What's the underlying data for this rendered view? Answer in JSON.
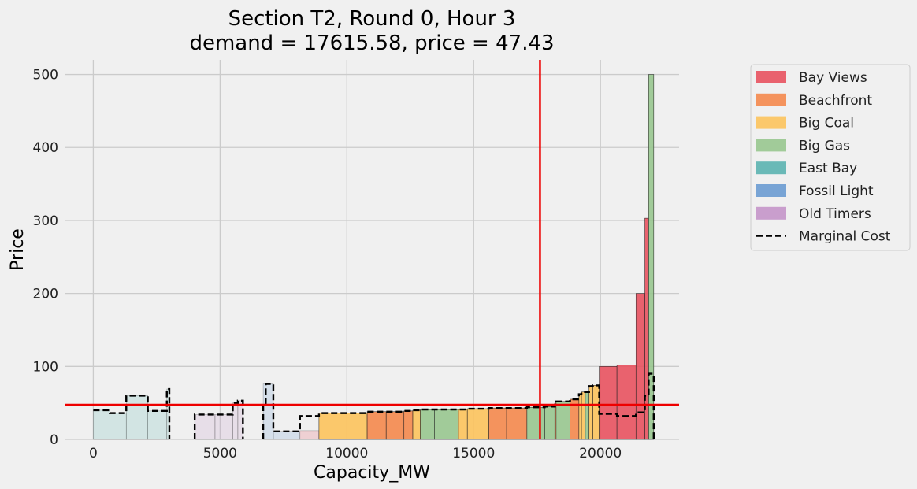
{
  "chart_data": {
    "type": "bar",
    "title_line1": "Section T2, Round 0, Hour 3",
    "title_line2": "demand = 17615.58, price = 47.43",
    "xlabel": "Capacity_MW",
    "ylabel": "Price",
    "xlim": [
      -1100,
      23100
    ],
    "ylim": [
      0,
      520
    ],
    "xticks": [
      0,
      5000,
      10000,
      15000,
      20000
    ],
    "yticks": [
      0,
      100,
      200,
      300,
      400,
      500
    ],
    "grid": true,
    "legend_position": "outside-right",
    "demand": 17615.58,
    "price": 47.43,
    "legend": [
      {
        "label": "Bay Views",
        "color": "#e8525f",
        "kind": "patch"
      },
      {
        "label": "Beachfront",
        "color": "#f4884c",
        "kind": "patch"
      },
      {
        "label": "Big Coal",
        "color": "#fcc35c",
        "kind": "patch"
      },
      {
        "label": "Big Gas",
        "color": "#98c68f",
        "kind": "patch"
      },
      {
        "label": "East Bay",
        "color": "#5bb3b0",
        "kind": "patch"
      },
      {
        "label": "Fossil Light",
        "color": "#6a9bd1",
        "kind": "patch"
      },
      {
        "label": "Old Timers",
        "color": "#c495c9",
        "kind": "patch"
      },
      {
        "label": "Marginal Cost",
        "color": "#000000",
        "kind": "dashed-line"
      }
    ],
    "bars": [
      {
        "x0": 0,
        "x1": 650,
        "y": 40,
        "group": "East Bay"
      },
      {
        "x0": 650,
        "x1": 1300,
        "y": 36,
        "group": "East Bay"
      },
      {
        "x0": 1300,
        "x1": 2150,
        "y": 60,
        "group": "East Bay"
      },
      {
        "x0": 2150,
        "x1": 2900,
        "y": 39,
        "group": "East Bay"
      },
      {
        "x0": 2900,
        "x1": 3000,
        "y": 69,
        "group": "East Bay"
      },
      {
        "x0": 4000,
        "x1": 4800,
        "y": 34,
        "group": "Old Timers"
      },
      {
        "x0": 4800,
        "x1": 5500,
        "y": 34,
        "group": "Old Timers"
      },
      {
        "x0": 5500,
        "x1": 5700,
        "y": 50,
        "group": "Old Timers"
      },
      {
        "x0": 5700,
        "x1": 5900,
        "y": 53,
        "group": "Old Timers"
      },
      {
        "x0": 6700,
        "x1": 7100,
        "y": 76,
        "group": "Fossil Light"
      },
      {
        "x0": 7100,
        "x1": 8150,
        "y": 11,
        "group": "Fossil Light"
      },
      {
        "x0": 8150,
        "x1": 8900,
        "y": 12,
        "group": "Bay Views"
      },
      {
        "x0": 8900,
        "x1": 10800,
        "y": 36,
        "group": "Big Coal"
      },
      {
        "x0": 10800,
        "x1": 11550,
        "y": 38,
        "group": "Beachfront"
      },
      {
        "x0": 11550,
        "x1": 12250,
        "y": 38,
        "group": "Beachfront"
      },
      {
        "x0": 12250,
        "x1": 12600,
        "y": 39,
        "group": "Beachfront"
      },
      {
        "x0": 12600,
        "x1": 12900,
        "y": 40,
        "group": "Big Coal"
      },
      {
        "x0": 12900,
        "x1": 13450,
        "y": 41,
        "group": "Big Gas"
      },
      {
        "x0": 13450,
        "x1": 14400,
        "y": 41,
        "group": "Big Gas"
      },
      {
        "x0": 14400,
        "x1": 14750,
        "y": 41,
        "group": "Big Coal"
      },
      {
        "x0": 14750,
        "x1": 15600,
        "y": 42,
        "group": "Big Coal"
      },
      {
        "x0": 15600,
        "x1": 16300,
        "y": 43,
        "group": "Beachfront"
      },
      {
        "x0": 16300,
        "x1": 17100,
        "y": 43,
        "group": "Beachfront"
      },
      {
        "x0": 17100,
        "x1": 17800,
        "y": 44,
        "group": "Big Gas"
      },
      {
        "x0": 17800,
        "x1": 18200,
        "y": 45,
        "group": "Big Gas"
      },
      {
        "x0": 18200,
        "x1": 18250,
        "y": 50,
        "group": "Beachfront"
      },
      {
        "x0": 18250,
        "x1": 18800,
        "y": 52,
        "group": "Big Gas"
      },
      {
        "x0": 18800,
        "x1": 19150,
        "y": 55,
        "group": "Beachfront"
      },
      {
        "x0": 19150,
        "x1": 19250,
        "y": 62,
        "group": "Big Coal"
      },
      {
        "x0": 19250,
        "x1": 19400,
        "y": 65,
        "group": "Big Coal"
      },
      {
        "x0": 19400,
        "x1": 19550,
        "y": 66,
        "group": "Big Gas"
      },
      {
        "x0": 19550,
        "x1": 19700,
        "y": 73,
        "group": "Big Coal"
      },
      {
        "x0": 19700,
        "x1": 19950,
        "y": 74,
        "group": "Big Coal"
      },
      {
        "x0": 19950,
        "x1": 20650,
        "y": 100,
        "group": "Bay Views"
      },
      {
        "x0": 20650,
        "x1": 21400,
        "y": 102,
        "group": "Bay Views"
      },
      {
        "x0": 21400,
        "x1": 21750,
        "y": 200,
        "group": "Bay Views"
      },
      {
        "x0": 21750,
        "x1": 21900,
        "y": 303,
        "group": "Bay Views"
      },
      {
        "x0": 21900,
        "x1": 22100,
        "y": 500,
        "group": "Big Gas"
      }
    ],
    "marginal_cost": [
      [
        [
          0,
          40
        ],
        [
          650,
          40
        ],
        [
          650,
          36
        ],
        [
          1300,
          36
        ],
        [
          1300,
          60
        ],
        [
          2150,
          60
        ],
        [
          2150,
          39
        ],
        [
          2900,
          39
        ],
        [
          2900,
          69
        ],
        [
          3000,
          69
        ],
        [
          3000,
          0
        ]
      ],
      [
        [
          4000,
          0
        ],
        [
          4000,
          34
        ],
        [
          5500,
          34
        ],
        [
          5500,
          50
        ],
        [
          5700,
          50
        ],
        [
          5700,
          53
        ],
        [
          5900,
          53
        ],
        [
          5900,
          0
        ]
      ],
      [
        [
          6700,
          0
        ],
        [
          6700,
          48
        ],
        [
          6800,
          48
        ],
        [
          6800,
          76
        ],
        [
          7100,
          76
        ],
        [
          7100,
          11
        ],
        [
          8150,
          11
        ],
        [
          8150,
          32
        ],
        [
          8900,
          32
        ],
        [
          8900,
          36
        ],
        [
          10800,
          36
        ],
        [
          10800,
          38
        ],
        [
          12250,
          38
        ],
        [
          12250,
          39
        ],
        [
          12600,
          39
        ],
        [
          12600,
          40
        ],
        [
          12900,
          40
        ],
        [
          12900,
          41
        ],
        [
          14750,
          41
        ],
        [
          14750,
          42
        ],
        [
          15600,
          42
        ],
        [
          15600,
          43
        ],
        [
          17100,
          43
        ],
        [
          17100,
          44
        ],
        [
          17800,
          44
        ],
        [
          17800,
          45
        ],
        [
          18200,
          45
        ],
        [
          18200,
          50
        ],
        [
          18250,
          50
        ],
        [
          18250,
          52
        ],
        [
          18800,
          52
        ],
        [
          18800,
          55
        ],
        [
          19150,
          55
        ],
        [
          19150,
          62
        ],
        [
          19250,
          62
        ],
        [
          19250,
          65
        ],
        [
          19550,
          65
        ],
        [
          19550,
          73
        ],
        [
          19700,
          73
        ],
        [
          19700,
          74
        ],
        [
          19950,
          74
        ],
        [
          19950,
          35
        ],
        [
          20650,
          35
        ],
        [
          20650,
          32
        ],
        [
          21400,
          32
        ],
        [
          21400,
          37
        ],
        [
          21750,
          37
        ],
        [
          21750,
          60
        ],
        [
          21900,
          60
        ],
        [
          21900,
          90
        ],
        [
          22100,
          90
        ],
        [
          22100,
          0
        ]
      ]
    ],
    "reference_line_color": "#ee0000",
    "grid_color": "#cbcbcb"
  }
}
